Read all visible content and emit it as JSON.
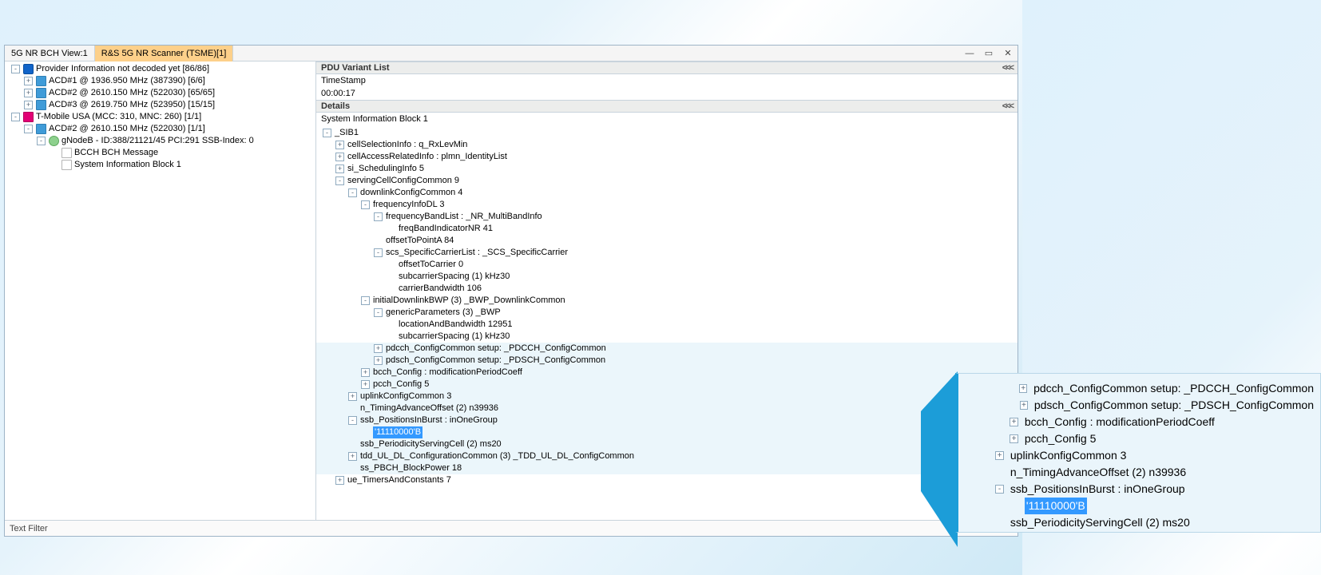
{
  "tab_inactive": "5G NR BCH View:1",
  "tab_active": "R&S 5G NR Scanner (TSME)[1]",
  "win_min": "—",
  "win_max": "▭",
  "win_close": "✕",
  "left_tree": [
    {
      "depth": 0,
      "toggle": "-",
      "icon": "info",
      "label": "Provider Information not decoded yet [86/86]"
    },
    {
      "depth": 1,
      "toggle": "+",
      "icon": "sm-blue",
      "label": "ACD#1 @ 1936.950 MHz (387390) [6/6]"
    },
    {
      "depth": 1,
      "toggle": "+",
      "icon": "sm-blue",
      "label": "ACD#2 @ 2610.150 MHz (522030) [65/65]"
    },
    {
      "depth": 1,
      "toggle": "+",
      "icon": "sm-blue",
      "label": "ACD#3 @ 2619.750 MHz (523950) [15/15]"
    },
    {
      "depth": 0,
      "toggle": "-",
      "icon": "pink",
      "label": "T-Mobile USA (MCC: 310, MNC: 260) [1/1]"
    },
    {
      "depth": 1,
      "toggle": "-",
      "icon": "sm-blue",
      "label": "ACD#2 @ 2610.150 MHz (522030) [1/1]"
    },
    {
      "depth": 2,
      "toggle": "-",
      "icon": "green",
      "label": "gNodeB - ID:388/21121/45 PCI:291 SSB-Index: 0"
    },
    {
      "depth": 3,
      "toggle": " ",
      "icon": "page",
      "label": "BCCH BCH Message"
    },
    {
      "depth": 3,
      "toggle": " ",
      "icon": "page",
      "label": "System Information Block 1"
    }
  ],
  "pdu_header": "PDU Variant List",
  "timestamp_label": "TimeStamp",
  "timestamp_value": "00:00:17",
  "details_header": "Details",
  "details_title": "System Information Block 1",
  "chev_txt": "<<<",
  "details_tree": [
    {
      "depth": 0,
      "toggle": "-",
      "label": "_SIB1"
    },
    {
      "depth": 1,
      "toggle": "+",
      "label": "cellSelectionInfo : q_RxLevMin"
    },
    {
      "depth": 1,
      "toggle": "+",
      "label": "cellAccessRelatedInfo : plmn_IdentityList"
    },
    {
      "depth": 1,
      "toggle": "+",
      "label": "si_SchedulingInfo  5"
    },
    {
      "depth": 1,
      "toggle": "-",
      "label": "servingCellConfigCommon  9"
    },
    {
      "depth": 2,
      "toggle": "-",
      "label": "downlinkConfigCommon  4"
    },
    {
      "depth": 3,
      "toggle": "-",
      "label": "frequencyInfoDL  3"
    },
    {
      "depth": 4,
      "toggle": "-",
      "label": "frequencyBandList : _NR_MultiBandInfo"
    },
    {
      "depth": 5,
      "toggle": " ",
      "label": "freqBandIndicatorNR  41"
    },
    {
      "depth": 4,
      "toggle": " ",
      "label": "offsetToPointA  84"
    },
    {
      "depth": 4,
      "toggle": "-",
      "label": "scs_SpecificCarrierList : _SCS_SpecificCarrier"
    },
    {
      "depth": 5,
      "toggle": " ",
      "label": "offsetToCarrier  0"
    },
    {
      "depth": 5,
      "toggle": " ",
      "label": "subcarrierSpacing  (1)  kHz30"
    },
    {
      "depth": 5,
      "toggle": " ",
      "label": "carrierBandwidth  106"
    },
    {
      "depth": 3,
      "toggle": "-",
      "label": "initialDownlinkBWP  (3)  _BWP_DownlinkCommon"
    },
    {
      "depth": 4,
      "toggle": "-",
      "label": "genericParameters  (3)  _BWP"
    },
    {
      "depth": 5,
      "toggle": " ",
      "label": "locationAndBandwidth  12951"
    },
    {
      "depth": 5,
      "toggle": " ",
      "label": "subcarrierSpacing  (1)  kHz30"
    },
    {
      "depth": 4,
      "toggle": "+",
      "label": "pdcch_ConfigCommon setup: _PDCCH_ConfigCommon",
      "hl": true
    },
    {
      "depth": 4,
      "toggle": "+",
      "label": "pdsch_ConfigCommon setup: _PDSCH_ConfigCommon",
      "hl": true
    },
    {
      "depth": 3,
      "toggle": "+",
      "label": "bcch_Config : modificationPeriodCoeff",
      "hl": true
    },
    {
      "depth": 3,
      "toggle": "+",
      "label": "pcch_Config  5",
      "hl": true
    },
    {
      "depth": 2,
      "toggle": "+",
      "label": "uplinkConfigCommon  3",
      "hl": true
    },
    {
      "depth": 2,
      "toggle": " ",
      "label": "n_TimingAdvanceOffset  (2)  n39936",
      "hl": true
    },
    {
      "depth": 2,
      "toggle": "-",
      "label": "ssb_PositionsInBurst : inOneGroup",
      "hl": true
    },
    {
      "depth": 3,
      "toggle": " ",
      "label": "'11110000'B",
      "hl": true,
      "sel": true
    },
    {
      "depth": 2,
      "toggle": " ",
      "label": "ssb_PeriodicityServingCell  (2)  ms20",
      "hl": true
    },
    {
      "depth": 2,
      "toggle": "+",
      "label": "tdd_UL_DL_ConfigurationCommon  (3)  _TDD_UL_DL_ConfigCommon",
      "hl": true
    },
    {
      "depth": 2,
      "toggle": " ",
      "label": "ss_PBCH_BlockPower  18",
      "hl": true
    },
    {
      "depth": 1,
      "toggle": "+",
      "label": "ue_TimersAndConstants  7"
    }
  ],
  "callout": [
    {
      "indent": 3,
      "toggle": "+",
      "label": "pdcch_ConfigCommon setup: _PDCCH_ConfigCommon"
    },
    {
      "indent": 3,
      "toggle": "+",
      "label": "pdsch_ConfigCommon setup: _PDSCH_ConfigCommon"
    },
    {
      "indent": 2,
      "toggle": "+",
      "label": "bcch_Config : modificationPeriodCoeff"
    },
    {
      "indent": 2,
      "toggle": "+",
      "label": "pcch_Config  5"
    },
    {
      "indent": 1,
      "toggle": "+",
      "label": "uplinkConfigCommon  3"
    },
    {
      "indent": 1,
      "toggle": " ",
      "label": "n_TimingAdvanceOffset  (2)  n39936"
    },
    {
      "indent": 1,
      "toggle": "-",
      "label": "ssb_PositionsInBurst : inOneGroup"
    },
    {
      "indent": 2,
      "toggle": " ",
      "label": "'11110000'B",
      "sel": true
    },
    {
      "indent": 1,
      "toggle": " ",
      "label": "ssb_PeriodicityServingCell  (2)  ms20"
    }
  ],
  "footer": "Text Filter"
}
